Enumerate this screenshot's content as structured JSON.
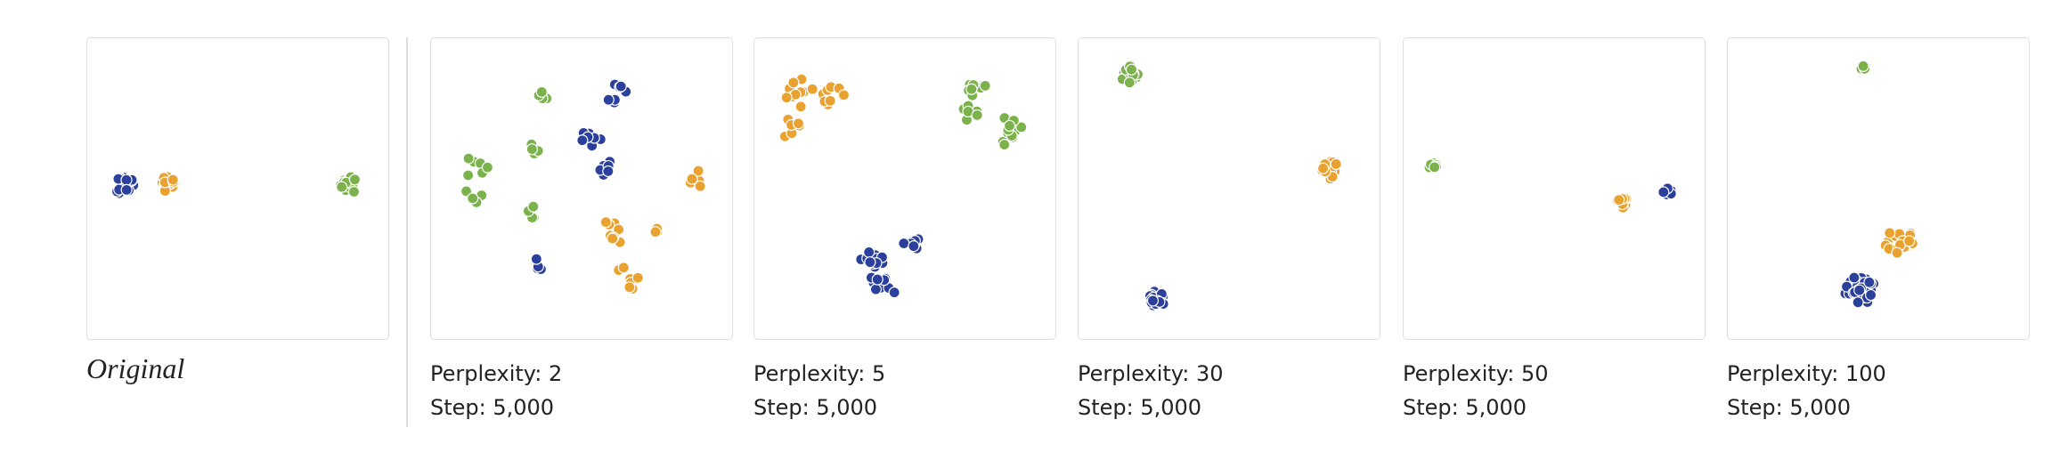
{
  "panels": [
    {
      "caption": "Original"
    },
    {
      "perplexity": "Perplexity: 2",
      "step": "Step: 5,000"
    },
    {
      "perplexity": "Perplexity: 5",
      "step": "Step: 5,000"
    },
    {
      "perplexity": "Perplexity: 30",
      "step": "Step: 5,000"
    },
    {
      "perplexity": "Perplexity: 50",
      "step": "Step: 5,000"
    },
    {
      "perplexity": "Perplexity: 100",
      "step": "Step: 5,000"
    }
  ]
}
